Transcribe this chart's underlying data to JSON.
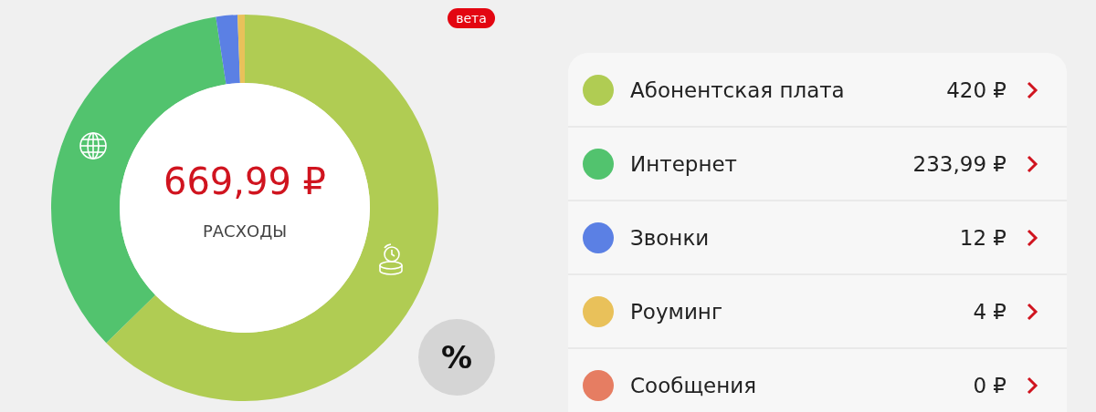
{
  "chart_data": {
    "type": "donut",
    "title": "669,99 ₽",
    "subtitle": "РАСХОДЫ",
    "categories": [
      "Абонентская плата",
      "Интернет",
      "Звонки",
      "Роуминг",
      "Сообщения"
    ],
    "values": [
      420,
      233.99,
      12,
      4,
      0
    ],
    "value_labels": [
      "420 ₽",
      "233,99 ₽",
      "12 ₽",
      "4 ₽",
      "0 ₽"
    ],
    "colors": [
      "#b0cc53",
      "#52c36e",
      "#5b80e4",
      "#e9c15a",
      "#e67d62"
    ],
    "legend": "right",
    "annotations": [
      "вета",
      "%"
    ]
  }
}
